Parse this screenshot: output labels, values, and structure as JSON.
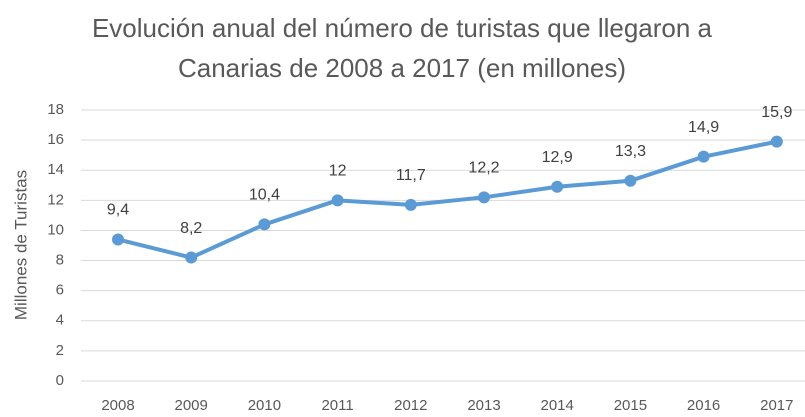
{
  "chart_data": {
    "type": "line",
    "title": "Evolución anual del número de turistas que llegaron a Canarias de 2008 a 2017 (en millones)",
    "y_label": "Millones de Turistas",
    "categories": [
      "2008",
      "2009",
      "2010",
      "2011",
      "2012",
      "2013",
      "2014",
      "2015",
      "2016",
      "2017"
    ],
    "values": [
      9.4,
      8.2,
      10.4,
      12,
      11.7,
      12.2,
      12.9,
      13.3,
      14.9,
      15.9
    ],
    "value_labels": [
      "9,4",
      "8,2",
      "10,4",
      "12",
      "11,7",
      "12,2",
      "12,9",
      "13,3",
      "14,9",
      "15,9"
    ],
    "color": "#5b9bd5",
    "ylim": [
      0,
      18
    ],
    "yticks": [
      0,
      2,
      4,
      6,
      8,
      10,
      12,
      14,
      16,
      18
    ],
    "grid": true
  }
}
